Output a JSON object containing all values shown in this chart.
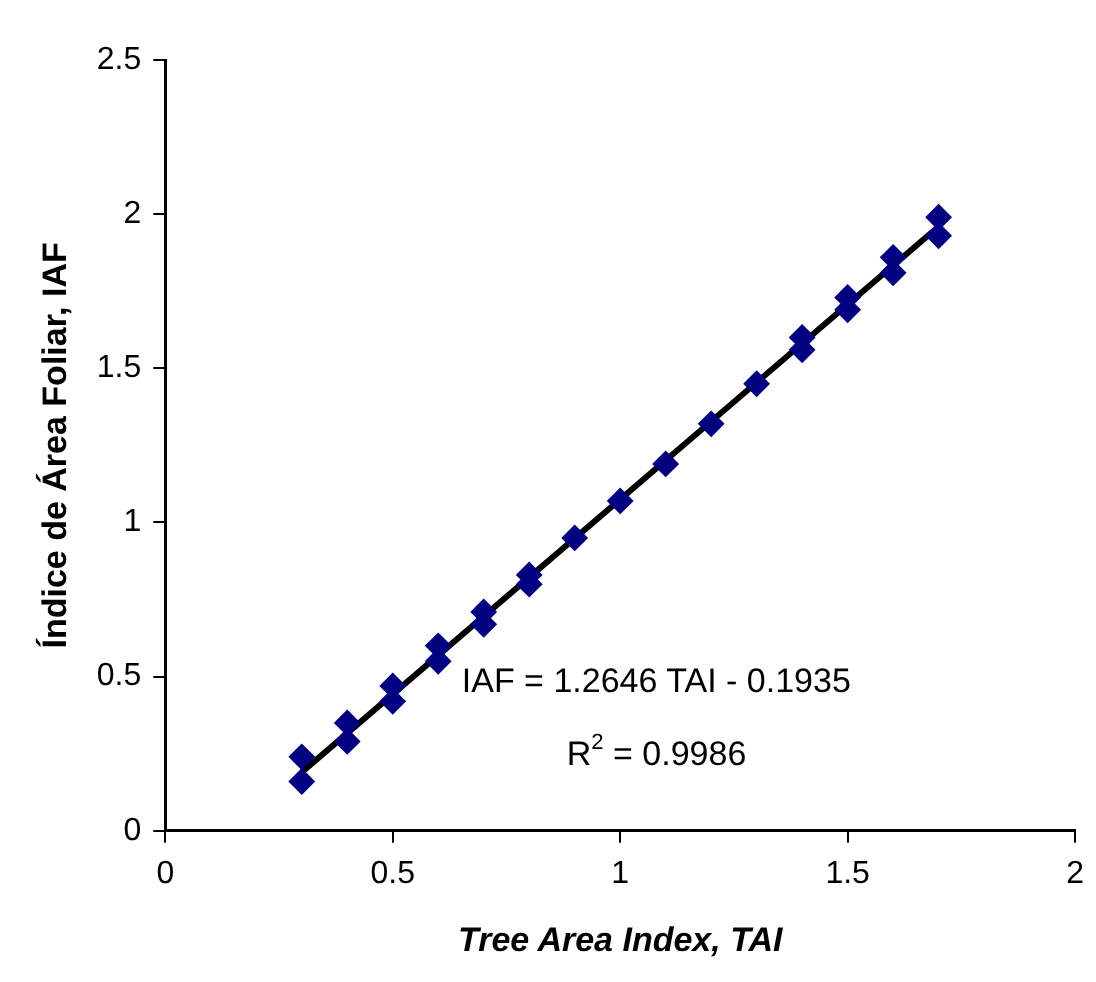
{
  "chart_data": {
    "type": "scatter",
    "xlabel": "Tree Area Index, TAI",
    "ylabel": "Índice de Área Foliar, IAF",
    "xlim": [
      0,
      2
    ],
    "xticks": [
      0,
      0.5,
      1,
      1.5,
      2
    ],
    "ylim": [
      0,
      2.5
    ],
    "yticks": [
      0,
      0.5,
      1,
      1.5,
      2,
      2.5
    ],
    "grid": false,
    "legend": false,
    "marker": "diamond",
    "series": [
      {
        "color": "#000080",
        "x": [
          0.3,
          0.3,
          0.4,
          0.4,
          0.5,
          0.5,
          0.6,
          0.6,
          0.7,
          0.7,
          0.8,
          0.8,
          0.9,
          1.0,
          1.1,
          1.2,
          1.3,
          1.4,
          1.4,
          1.5,
          1.5,
          1.6,
          1.6,
          1.7,
          1.7
        ],
        "values": [
          0.16,
          0.24,
          0.29,
          0.35,
          0.42,
          0.47,
          0.55,
          0.6,
          0.67,
          0.71,
          0.8,
          0.83,
          0.95,
          1.07,
          1.19,
          1.32,
          1.45,
          1.56,
          1.6,
          1.69,
          1.73,
          1.81,
          1.86,
          1.93,
          1.99
        ]
      },
      {
        "type": "line",
        "color": "#000000",
        "marker": "none",
        "x": [
          0.3,
          1.7
        ],
        "values": [
          0.19,
          1.96
        ]
      }
    ],
    "annotations": [
      "IAF = 1.2646 TAI - 0.1935",
      "R$^{2}$ = 0.9986"
    ]
  }
}
